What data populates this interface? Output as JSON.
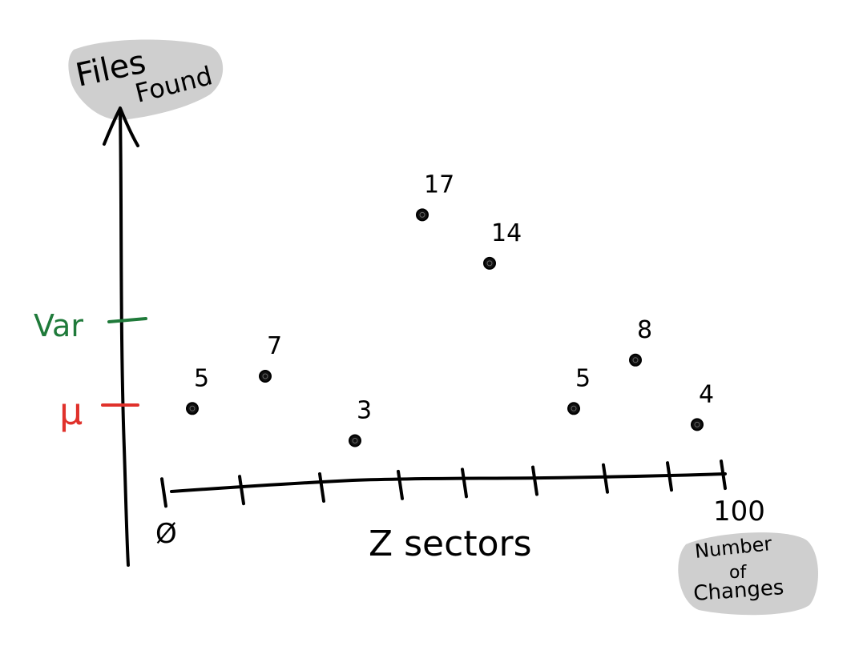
{
  "chart_data": {
    "type": "scatter",
    "title": "",
    "ylabel": "Files Found",
    "xlabel_note": "Number of Changes",
    "xlabel_center": "Z sectors",
    "x_start_label": "Ø",
    "x_end_label": "100",
    "reference_lines": [
      {
        "label": "Var",
        "color": "#1f7a3a"
      },
      {
        "label": "μ",
        "color": "#e0312b"
      }
    ],
    "points": [
      {
        "label": "5",
        "x": 5,
        "y": 5
      },
      {
        "label": "7",
        "x": 18,
        "y": 7
      },
      {
        "label": "3",
        "x": 34,
        "y": 3
      },
      {
        "label": "17",
        "x": 46,
        "y": 17
      },
      {
        "label": "14",
        "x": 58,
        "y": 14
      },
      {
        "label": "5",
        "x": 73,
        "y": 5
      },
      {
        "label": "8",
        "x": 84,
        "y": 8
      },
      {
        "label": "4",
        "x": 95,
        "y": 4
      }
    ],
    "grid": false,
    "legend": "none"
  }
}
